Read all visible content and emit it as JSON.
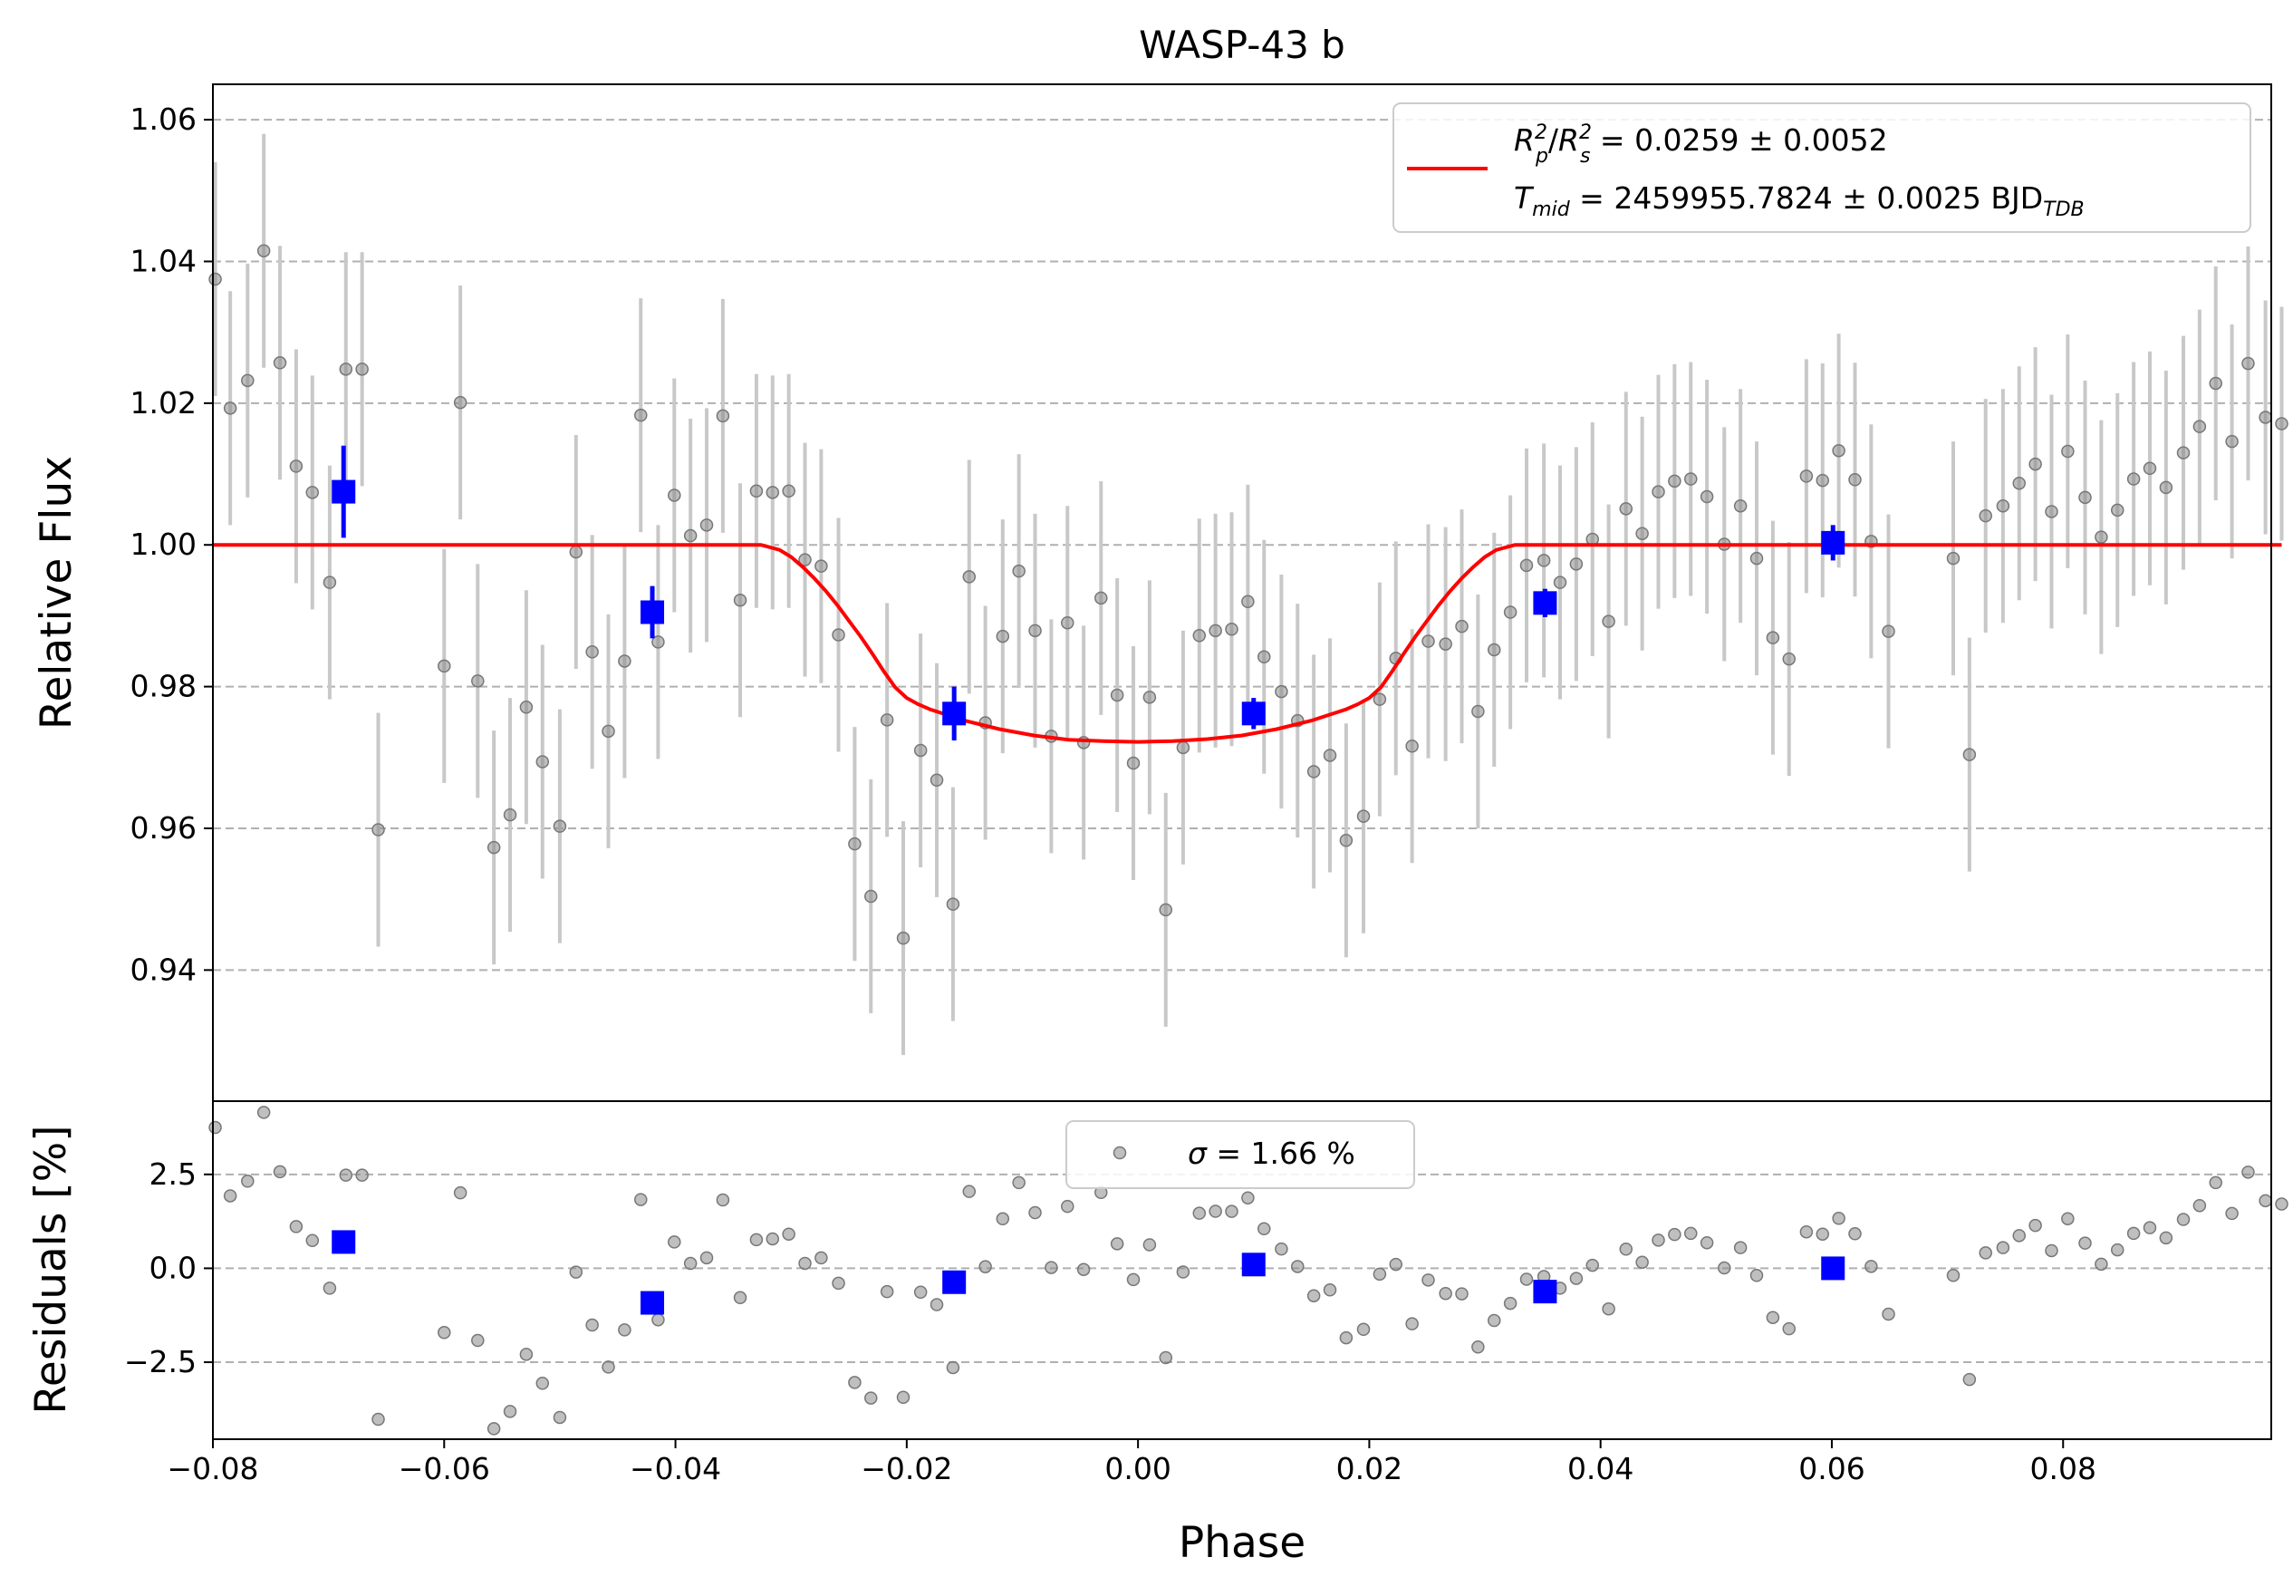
{
  "chart_data": [
    {
      "type": "scatter",
      "panel": "main",
      "title": "WASP-43 b",
      "xlabel": "Phase",
      "ylabel": "Relative Flux",
      "xlim": [
        -0.08,
        0.098
      ],
      "ylim": [
        0.9215,
        1.065
      ],
      "xticks": [
        -0.08,
        -0.06,
        -0.04,
        -0.02,
        0.0,
        0.02,
        0.04,
        0.06,
        0.08
      ],
      "xtick_labels": [
        "−0.08",
        "−0.06",
        "−0.04",
        "−0.02",
        "0.00",
        "0.02",
        "0.04",
        "0.06",
        "0.08"
      ],
      "yticks": [
        0.94,
        0.96,
        0.98,
        1.0,
        1.02,
        1.04,
        1.06
      ],
      "ytick_labels": [
        "0.94",
        "0.96",
        "0.98",
        "1.00",
        "1.02",
        "1.04",
        "1.06"
      ],
      "grid": "horizontal dashed",
      "legend_position": "upper right",
      "legend": {
        "label1_main": "R",
        "label1_p": "p",
        "label1_s": "s",
        "label1_sup": "2",
        "label1_value": " = 0.0259 ± 0.0052",
        "label2_main": "T",
        "label2_sub": "mid",
        "label2_value": " = 2459955.7824 ± 0.0025 BJD",
        "label2_unit_sub": "TDB"
      },
      "colors": {
        "raw": "#8a8a8a",
        "raw_err": "#c8c8c8",
        "binned": "#0000ff",
        "model": "#ff0000"
      },
      "raw_errorbar": 0.0165,
      "raw_points": [
        [
          -0.0798,
          1.0375
        ],
        [
          -0.0785,
          1.0193
        ],
        [
          -0.077,
          1.0232
        ],
        [
          -0.0756,
          1.0415
        ],
        [
          -0.0742,
          1.0257
        ],
        [
          -0.0728,
          1.0111
        ],
        [
          -0.0714,
          1.0074
        ],
        [
          -0.0699,
          0.9947
        ],
        [
          -0.0685,
          1.0248
        ],
        [
          -0.0671,
          1.0248
        ],
        [
          -0.0657,
          0.9598
        ],
        [
          -0.06,
          0.9829
        ],
        [
          -0.0586,
          1.0201
        ],
        [
          -0.0571,
          0.9808
        ],
        [
          -0.0557,
          0.9573
        ],
        [
          -0.0543,
          0.9619
        ],
        [
          -0.0529,
          0.9771
        ],
        [
          -0.0515,
          0.9694
        ],
        [
          -0.05,
          0.9603
        ],
        [
          -0.0486,
          0.999
        ],
        [
          -0.0472,
          0.9849
        ],
        [
          -0.0458,
          0.9737
        ],
        [
          -0.0444,
          0.9836
        ],
        [
          -0.043,
          1.0183
        ],
        [
          -0.0415,
          0.9863
        ],
        [
          -0.0401,
          1.007
        ],
        [
          -0.0387,
          1.0013
        ],
        [
          -0.0373,
          1.0028
        ],
        [
          -0.0359,
          1.0182
        ],
        [
          -0.0344,
          0.9922
        ],
        [
          -0.033,
          1.0076
        ],
        [
          -0.0316,
          1.0074
        ],
        [
          -0.0302,
          1.0076
        ],
        [
          -0.0288,
          0.9979
        ],
        [
          -0.0274,
          0.997
        ],
        [
          -0.0259,
          0.9873
        ],
        [
          -0.0245,
          0.9578
        ],
        [
          -0.0231,
          0.9504
        ],
        [
          -0.0217,
          0.9753
        ],
        [
          -0.0203,
          0.9445
        ],
        [
          -0.0188,
          0.971
        ],
        [
          -0.0174,
          0.9668
        ],
        [
          -0.016,
          0.9493
        ],
        [
          -0.0146,
          0.9955
        ],
        [
          -0.0132,
          0.9749
        ],
        [
          -0.0117,
          0.9871
        ],
        [
          -0.0103,
          0.9963
        ],
        [
          -0.0089,
          0.9879
        ],
        [
          -0.0075,
          0.973
        ],
        [
          -0.0061,
          0.989
        ],
        [
          -0.0047,
          0.9721
        ],
        [
          -0.0032,
          0.9925
        ],
        [
          -0.0018,
          0.9788
        ],
        [
          -0.0004,
          0.9692
        ],
        [
          0.001,
          0.9785
        ],
        [
          0.0024,
          0.9485
        ],
        [
          0.0039,
          0.9714
        ],
        [
          0.0053,
          0.9872
        ],
        [
          0.0067,
          0.9879
        ],
        [
          0.0081,
          0.9881
        ],
        [
          0.0095,
          0.992
        ],
        [
          0.0109,
          0.9842
        ],
        [
          0.0124,
          0.9793
        ],
        [
          0.0138,
          0.9752
        ],
        [
          0.0152,
          0.968
        ],
        [
          0.0166,
          0.9703
        ],
        [
          0.018,
          0.9583
        ],
        [
          0.0195,
          0.9617
        ],
        [
          0.0209,
          0.9782
        ],
        [
          0.0223,
          0.984
        ],
        [
          0.0237,
          0.9716
        ],
        [
          0.0251,
          0.9864
        ],
        [
          0.0266,
          0.986
        ],
        [
          0.028,
          0.9885
        ],
        [
          0.0294,
          0.9765
        ],
        [
          0.0308,
          0.9852
        ],
        [
          0.0322,
          0.9905
        ],
        [
          0.0336,
          0.9971
        ],
        [
          0.0351,
          0.9978
        ],
        [
          0.0365,
          0.9947
        ],
        [
          0.0379,
          0.9973
        ],
        [
          0.0393,
          1.0008
        ],
        [
          0.0407,
          0.9892
        ],
        [
          0.0422,
          1.0051
        ],
        [
          0.0436,
          1.0016
        ],
        [
          0.045,
          1.0075
        ],
        [
          0.0464,
          1.009
        ],
        [
          0.0478,
          1.0093
        ],
        [
          0.0492,
          1.0068
        ],
        [
          0.0507,
          1.0001
        ],
        [
          0.0521,
          1.0055
        ],
        [
          0.0535,
          0.9981
        ],
        [
          0.0549,
          0.9869
        ],
        [
          0.0563,
          0.9839
        ],
        [
          0.0578,
          1.0097
        ],
        [
          0.0592,
          1.0091
        ],
        [
          0.0606,
          1.0133
        ],
        [
          0.062,
          1.0092
        ],
        [
          0.0634,
          1.0005
        ],
        [
          0.0649,
          0.9878
        ],
        [
          0.0705,
          0.9981
        ],
        [
          0.0719,
          0.9704
        ],
        [
          0.0733,
          1.0041
        ],
        [
          0.0748,
          1.0055
        ],
        [
          0.0762,
          1.0087
        ],
        [
          0.0776,
          1.0114
        ],
        [
          0.079,
          1.0047
        ],
        [
          0.0804,
          1.0132
        ],
        [
          0.0819,
          1.0067
        ],
        [
          0.0833,
          1.0011
        ],
        [
          0.0847,
          1.0049
        ],
        [
          0.0861,
          1.0093
        ],
        [
          0.0875,
          1.0108
        ],
        [
          0.0889,
          1.0081
        ],
        [
          0.0904,
          1.013
        ],
        [
          0.0918,
          1.0167
        ],
        [
          0.0932,
          1.0228
        ],
        [
          0.0946,
          1.0146
        ],
        [
          0.096,
          1.0256
        ],
        [
          0.0975,
          1.018
        ],
        [
          0.0989,
          1.0171
        ]
      ],
      "binned_points": [
        {
          "x": -0.0687,
          "y": 1.0075,
          "err": 0.0065
        },
        {
          "x": -0.042,
          "y": 0.9905,
          "err": 0.0037
        },
        {
          "x": -0.0159,
          "y": 0.9762,
          "err": 0.0038
        },
        {
          "x": 0.01,
          "y": 0.9762,
          "err": 0.0022
        },
        {
          "x": 0.0352,
          "y": 0.9918,
          "err": 0.002
        },
        {
          "x": 0.0601,
          "y": 1.0003,
          "err": 0.0025
        }
      ],
      "model_curve": {
        "x": [
          -0.08,
          -0.0326,
          -0.031,
          -0.03,
          -0.029,
          -0.028,
          -0.027,
          -0.026,
          -0.025,
          -0.024,
          -0.023,
          -0.022,
          -0.021,
          -0.02,
          -0.019,
          -0.018,
          -0.015,
          -0.012,
          -0.009,
          -0.006,
          -0.003,
          0.0,
          0.003,
          0.006,
          0.009,
          0.012,
          0.015,
          0.018,
          0.019,
          0.02,
          0.021,
          0.022,
          0.023,
          0.024,
          0.025,
          0.026,
          0.027,
          0.028,
          0.029,
          0.03,
          0.031,
          0.0326,
          0.0989
        ],
        "y": [
          1.0,
          1.0,
          0.9993,
          0.9983,
          0.9969,
          0.9953,
          0.9935,
          0.9915,
          0.9893,
          0.9871,
          0.9847,
          0.9822,
          0.9799,
          0.9784,
          0.9775,
          0.9768,
          0.9752,
          0.974,
          0.9731,
          0.9725,
          0.9723,
          0.9722,
          0.9723,
          0.9726,
          0.9731,
          0.974,
          0.9752,
          0.9768,
          0.9775,
          0.9784,
          0.9799,
          0.9822,
          0.9847,
          0.9871,
          0.9893,
          0.9915,
          0.9935,
          0.9953,
          0.9969,
          0.9983,
          0.9993,
          1.0,
          1.0
        ]
      }
    },
    {
      "type": "scatter",
      "panel": "residuals",
      "xlabel": "Phase",
      "ylabel": "Residuals [%]",
      "xlim": [
        -0.08,
        0.098
      ],
      "ylim": [
        -4.55,
        4.45
      ],
      "yticks": [
        -2.5,
        0.0,
        2.5
      ],
      "ytick_labels": [
        "−2.5",
        "0.0",
        "2.5"
      ],
      "grid": "horizontal dashed",
      "legend_position": "upper center",
      "legend": {
        "label": " = 1.66 %",
        "symbol": "σ"
      },
      "binned_points": [
        {
          "x": -0.0687,
          "y": 0.7
        },
        {
          "x": -0.042,
          "y": -0.92
        },
        {
          "x": -0.0159,
          "y": -0.37
        },
        {
          "x": 0.01,
          "y": 0.1
        },
        {
          "x": 0.0352,
          "y": -0.62
        },
        {
          "x": 0.0601,
          "y": 0.0
        }
      ]
    }
  ]
}
